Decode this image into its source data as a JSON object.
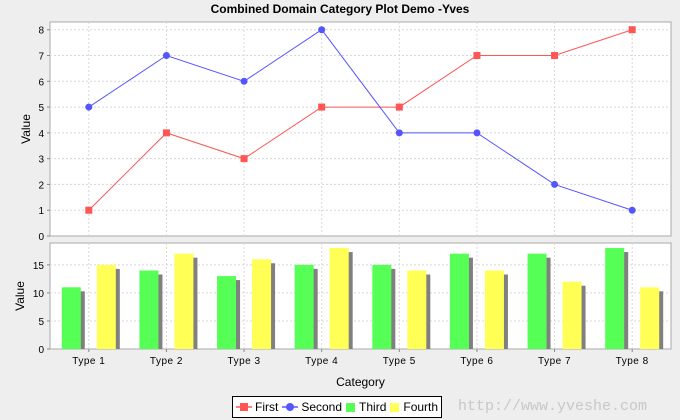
{
  "title": "Combined Domain Category Plot Demo -Yves",
  "watermark": "http://www.yveshe.com",
  "legend": [
    {
      "label": "First",
      "color": "#ff5555",
      "shape": "square-line"
    },
    {
      "label": "Second",
      "color": "#5555ff",
      "shape": "circle-line"
    },
    {
      "label": "Third",
      "color": "#55ff55",
      "shape": "box"
    },
    {
      "label": "Fourth",
      "color": "#ffff55",
      "shape": "box"
    }
  ],
  "chart_data": [
    {
      "type": "line",
      "title": "Combined Domain Category Plot Demo -Yves",
      "xlabel": "Category",
      "ylabel": "Value",
      "ylim": [
        0,
        8.3
      ],
      "yticks": [
        0,
        1,
        2,
        3,
        4,
        5,
        6,
        7,
        8
      ],
      "grid": true,
      "categories": [
        "Type 1",
        "Type 2",
        "Type 3",
        "Type 4",
        "Type 5",
        "Type 6",
        "Type 7",
        "Type 8"
      ],
      "series": [
        {
          "name": "First",
          "color": "#ff5555",
          "values": [
            1,
            4,
            3,
            5,
            5,
            7,
            7,
            8
          ]
        },
        {
          "name": "Second",
          "color": "#5555ff",
          "values": [
            5,
            7,
            6,
            8,
            4,
            4,
            2,
            1
          ]
        }
      ]
    },
    {
      "type": "bar",
      "xlabel": "Category",
      "ylabel": "Value",
      "ylim": [
        0,
        18.9
      ],
      "yticks": [
        0,
        5,
        10,
        15
      ],
      "grid": true,
      "categories": [
        "Type 1",
        "Type 2",
        "Type 3",
        "Type 4",
        "Type 5",
        "Type 6",
        "Type 7",
        "Type 8"
      ],
      "series": [
        {
          "name": "Third",
          "color": "#55ff55",
          "values": [
            11,
            14,
            13,
            15,
            15,
            17,
            17,
            18
          ]
        },
        {
          "name": "Fourth",
          "color": "#ffff55",
          "values": [
            15,
            17,
            16,
            18,
            14,
            14,
            12,
            11
          ]
        }
      ]
    }
  ],
  "legend_position": "bottom"
}
